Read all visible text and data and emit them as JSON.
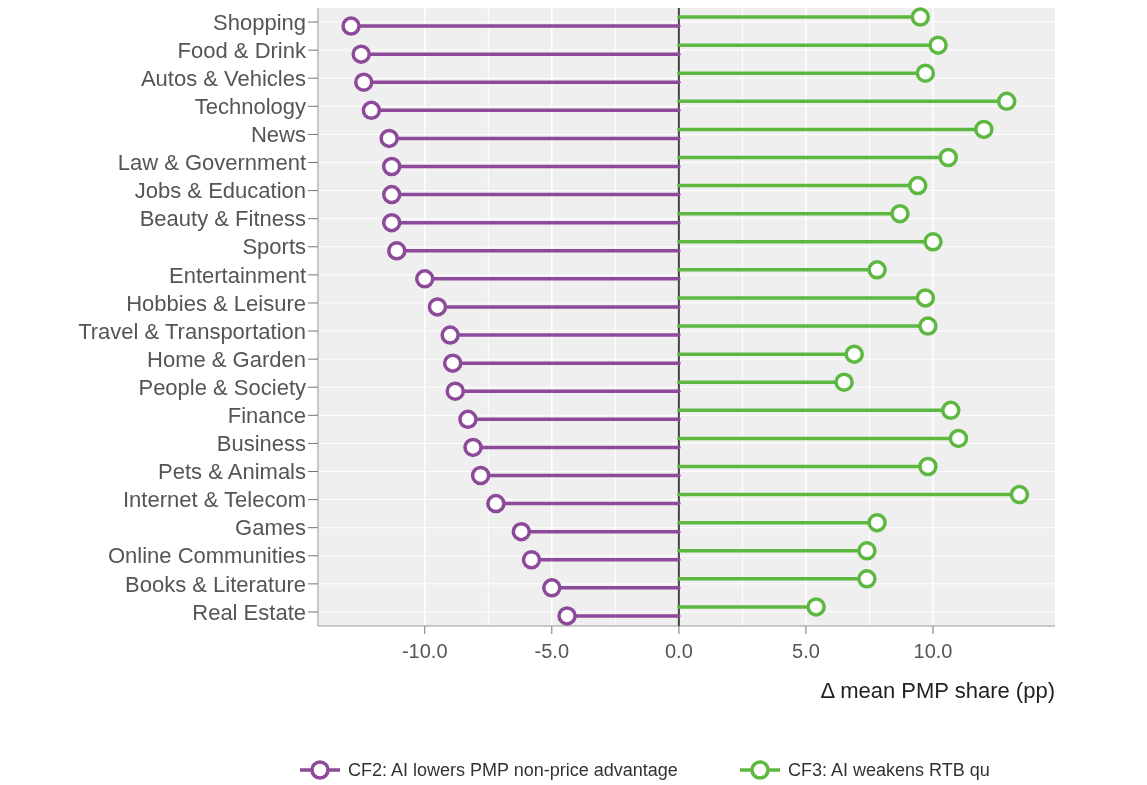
{
  "chart_data": {
    "type": "lollipop",
    "orientation": "horizontal",
    "xlabel": "Δ mean PMP share (pp)",
    "categories": [
      "Shopping",
      "Food & Drink",
      "Autos & Vehicles",
      "Technology",
      "News",
      "Law & Government",
      "Jobs & Education",
      "Beauty & Fitness",
      "Sports",
      "Entertainment",
      "Hobbies & Leisure",
      "Travel & Transportation",
      "Home & Garden",
      "People & Society",
      "Finance",
      "Business",
      "Pets & Animals",
      "Internet & Telecom",
      "Games",
      "Online Communities",
      "Books & Literature",
      "Real Estate"
    ],
    "series": [
      {
        "name": "CF2: AI lowers PMP non-price advantage",
        "color": "#8e4a9a",
        "values": [
          -12.9,
          -12.5,
          -12.4,
          -12.1,
          -11.4,
          -11.3,
          -11.3,
          -11.3,
          -11.1,
          -10.0,
          -9.5,
          -9.0,
          -8.9,
          -8.8,
          -8.3,
          -8.1,
          -7.8,
          -7.2,
          -6.2,
          -5.8,
          -5.0,
          -4.4
        ]
      },
      {
        "name": "CF3: AI weakens RTB qu",
        "color": "#5db842",
        "values": [
          9.5,
          10.2,
          9.7,
          12.9,
          12.0,
          10.6,
          9.4,
          8.7,
          10.0,
          7.8,
          9.7,
          9.8,
          6.9,
          6.5,
          10.7,
          11.0,
          9.8,
          13.4,
          7.8,
          7.4,
          7.4,
          5.4
        ]
      }
    ],
    "xlim": [
      -14.2,
      14.8
    ],
    "xticks": [
      {
        "value": -10,
        "label": "-10.0"
      },
      {
        "value": -5,
        "label": "-5.0"
      },
      {
        "value": 0,
        "label": "0.0"
      },
      {
        "value": 5,
        "label": "5.0"
      },
      {
        "value": 10,
        "label": "10.0"
      }
    ],
    "grid": true,
    "legend": "bottom",
    "marker": "circle",
    "line_style": "solid"
  }
}
